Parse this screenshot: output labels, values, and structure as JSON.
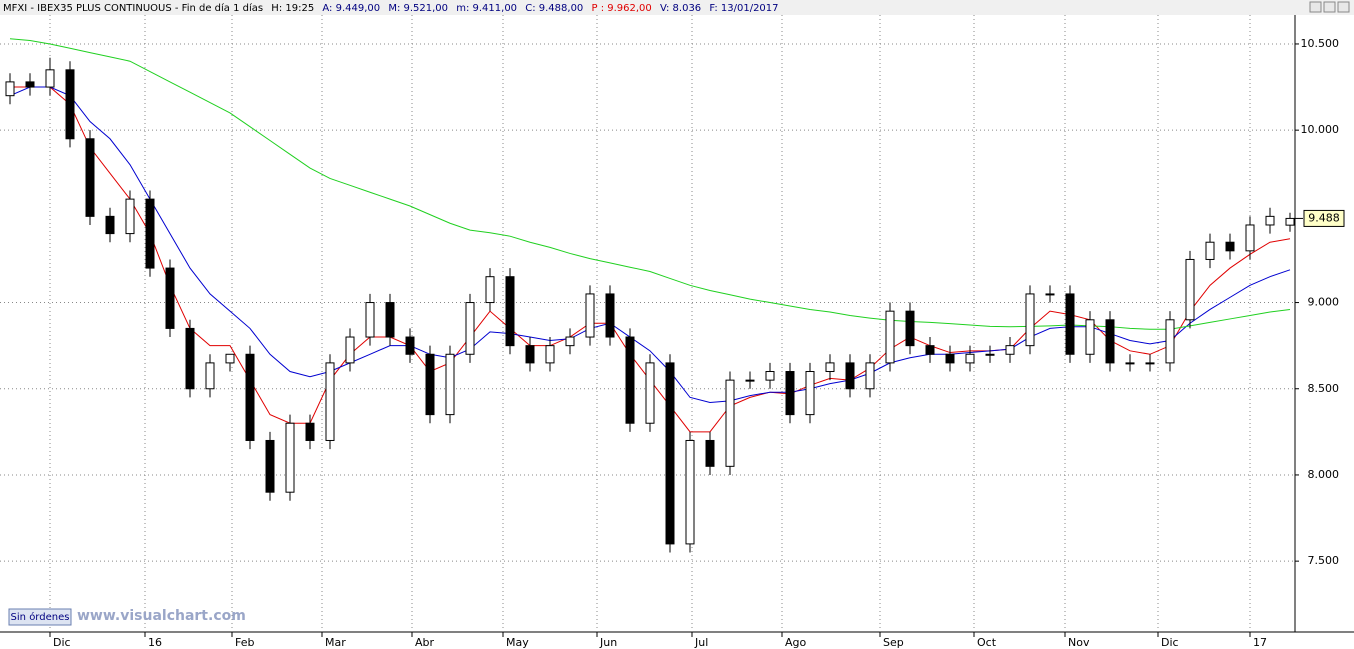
{
  "header": {
    "symbol": "MFXI - IBEX35 PLUS CONTINUOUS - Fin de día 1 días",
    "hour": "H: 19:25",
    "open": "A: 9.449,00",
    "high": "M: 9.521,00",
    "low": "m: 9.411,00",
    "close": "C: 9.488,00",
    "prev": "P : 9.962,00",
    "volume": "V: 8.036",
    "date": "F: 13/01/2017"
  },
  "footer": {
    "orders": "Sin órdenes",
    "site": "www.visualchart.com"
  },
  "chart_data": {
    "type": "candlestick",
    "x": [
      0,
      1,
      2,
      3,
      4,
      5,
      6,
      7,
      8,
      9,
      10,
      11,
      12,
      13,
      14,
      15,
      16,
      17,
      18,
      19,
      20,
      21,
      22,
      23,
      24,
      25,
      26,
      27,
      28,
      29,
      30,
      31,
      32,
      33,
      34,
      35,
      36,
      37,
      38,
      39,
      40,
      41,
      42,
      43,
      44,
      45,
      46,
      47,
      48,
      49,
      50,
      51,
      52,
      53,
      54,
      55,
      56,
      57,
      58,
      59,
      60,
      61,
      62,
      63,
      64
    ],
    "open": [
      10200,
      10280,
      10250,
      10350,
      9950,
      9500,
      9400,
      9600,
      9200,
      8850,
      8500,
      8650,
      8700,
      8200,
      7900,
      8300,
      8200,
      8650,
      8800,
      9000,
      8800,
      8700,
      8350,
      8700,
      9000,
      9150,
      8750,
      8650,
      8750,
      8800,
      9050,
      8800,
      8300,
      8650,
      7600,
      8200,
      8050,
      8550,
      8550,
      8600,
      8350,
      8600,
      8650,
      8500,
      8650,
      8950,
      8750,
      8700,
      8650,
      8700,
      8700,
      8750,
      9050,
      9050,
      8700,
      8900,
      8650,
      8650,
      8650,
      8900,
      9250,
      9350,
      9300,
      9450,
      9449
    ],
    "high": [
      10330,
      10330,
      10420,
      10400,
      10000,
      9550,
      9650,
      9650,
      9250,
      8900,
      8700,
      8700,
      8750,
      8250,
      8350,
      8350,
      8700,
      8850,
      9050,
      9050,
      8850,
      8750,
      8750,
      9050,
      9200,
      9200,
      8800,
      8800,
      8850,
      9100,
      9100,
      8850,
      8700,
      8700,
      8250,
      8250,
      8600,
      8600,
      8650,
      8650,
      8650,
      8700,
      8700,
      8700,
      9000,
      9000,
      8800,
      8750,
      8750,
      8750,
      8800,
      9100,
      9100,
      9100,
      8950,
      8950,
      8700,
      8700,
      8950,
      9300,
      9400,
      9400,
      9500,
      9550,
      9521
    ],
    "low": [
      10150,
      10200,
      10200,
      9900,
      9450,
      9350,
      9350,
      9150,
      8800,
      8450,
      8450,
      8600,
      8150,
      7850,
      7850,
      8150,
      8150,
      8600,
      8750,
      8750,
      8650,
      8300,
      8300,
      8650,
      8950,
      8700,
      8600,
      8600,
      8700,
      8750,
      8750,
      8250,
      8250,
      7550,
      7550,
      8000,
      8000,
      8500,
      8500,
      8300,
      8300,
      8550,
      8450,
      8450,
      8600,
      8700,
      8650,
      8600,
      8600,
      8650,
      8650,
      8700,
      9000,
      8650,
      8650,
      8600,
      8600,
      8600,
      8600,
      8850,
      9200,
      9250,
      9250,
      9400,
      9411
    ],
    "close": [
      10280,
      10250,
      10350,
      9950,
      9500,
      9400,
      9600,
      9200,
      8850,
      8500,
      8650,
      8700,
      8200,
      7900,
      8300,
      8200,
      8650,
      8800,
      9000,
      8800,
      8700,
      8350,
      8700,
      9000,
      9150,
      8750,
      8650,
      8750,
      8800,
      9050,
      8800,
      8300,
      8650,
      7600,
      8200,
      8050,
      8550,
      8550,
      8600,
      8350,
      8600,
      8650,
      8500,
      8650,
      8950,
      8750,
      8700,
      8650,
      8700,
      8700,
      8750,
      9050,
      9050,
      8700,
      8900,
      8650,
      8650,
      8650,
      8900,
      9250,
      9350,
      9300,
      9450,
      9500,
      9488
    ],
    "series": [
      {
        "color": "#e00000",
        "values": [
          10250,
          10250,
          10250,
          10150,
          9900,
          9750,
          9600,
          9400,
          9100,
          8850,
          8750,
          8750,
          8550,
          8350,
          8300,
          8300,
          8550,
          8700,
          8800,
          8800,
          8750,
          8600,
          8650,
          8800,
          8950,
          8850,
          8750,
          8750,
          8800,
          8880,
          8880,
          8700,
          8550,
          8400,
          8250,
          8250,
          8400,
          8450,
          8480,
          8470,
          8520,
          8560,
          8550,
          8620,
          8730,
          8800,
          8750,
          8710,
          8720,
          8720,
          8730,
          8850,
          8950,
          8930,
          8900,
          8780,
          8720,
          8700,
          8750,
          8950,
          9100,
          9200,
          9280,
          9350,
          9370
        ]
      },
      {
        "color": "#0000d0",
        "values": [
          10200,
          10250,
          10250,
          10200,
          10050,
          9950,
          9800,
          9600,
          9400,
          9200,
          9050,
          8950,
          8850,
          8700,
          8600,
          8570,
          8600,
          8650,
          8700,
          8750,
          8750,
          8700,
          8680,
          8730,
          8830,
          8820,
          8800,
          8780,
          8790,
          8850,
          8880,
          8800,
          8720,
          8600,
          8450,
          8420,
          8430,
          8460,
          8480,
          8480,
          8500,
          8530,
          8550,
          8590,
          8650,
          8680,
          8700,
          8700,
          8710,
          8720,
          8730,
          8800,
          8850,
          8860,
          8860,
          8820,
          8780,
          8760,
          8780,
          8880,
          8960,
          9030,
          9100,
          9150,
          9190
        ]
      },
      {
        "color": "#20d020",
        "values": [
          10530,
          10520,
          10500,
          10475,
          10450,
          10425,
          10400,
          10340,
          10280,
          10220,
          10160,
          10100,
          10020,
          9940,
          9860,
          9780,
          9720,
          9680,
          9640,
          9600,
          9560,
          9510,
          9460,
          9420,
          9405,
          9385,
          9350,
          9320,
          9285,
          9255,
          9230,
          9205,
          9180,
          9140,
          9100,
          9070,
          9045,
          9020,
          9000,
          8980,
          8960,
          8945,
          8925,
          8910,
          8897,
          8890,
          8885,
          8878,
          8870,
          8862,
          8860,
          8862,
          8865,
          8870,
          8865,
          8860,
          8850,
          8845,
          8845,
          8865,
          8885,
          8905,
          8925,
          8945,
          8960
        ]
      }
    ],
    "xlim": [
      -0.5,
      64.25
    ],
    "xticks": [
      {
        "value": 2,
        "label": "Dic"
      },
      {
        "value": 6.75,
        "label": "16"
      },
      {
        "value": 11.1,
        "label": "Feb"
      },
      {
        "value": 15.6,
        "label": "Mar"
      },
      {
        "value": 20.1,
        "label": "Abr"
      },
      {
        "value": 24.65,
        "label": "May"
      },
      {
        "value": 29.35,
        "label": "Jun"
      },
      {
        "value": 34.1,
        "label": "Jul"
      },
      {
        "value": 38.6,
        "label": "Ago"
      },
      {
        "value": 43.5,
        "label": "Sep"
      },
      {
        "value": 48.2,
        "label": "Oct"
      },
      {
        "value": 52.75,
        "label": "Nov"
      },
      {
        "value": 57.4,
        "label": "Dic"
      },
      {
        "value": 62,
        "label": "17"
      }
    ],
    "ylim": [
      7089,
      10668
    ],
    "yticks": [
      {
        "value": 7500,
        "label": "7.500"
      },
      {
        "value": 8000,
        "label": "8.000"
      },
      {
        "value": 8500,
        "label": "8.500"
      },
      {
        "value": 9000,
        "label": "9.000"
      },
      {
        "value": 10000,
        "label": "10.000"
      },
      {
        "value": 10500,
        "label": "10.500"
      }
    ],
    "last_price": {
      "value": 9488,
      "label": "9.488"
    },
    "grid": true
  }
}
